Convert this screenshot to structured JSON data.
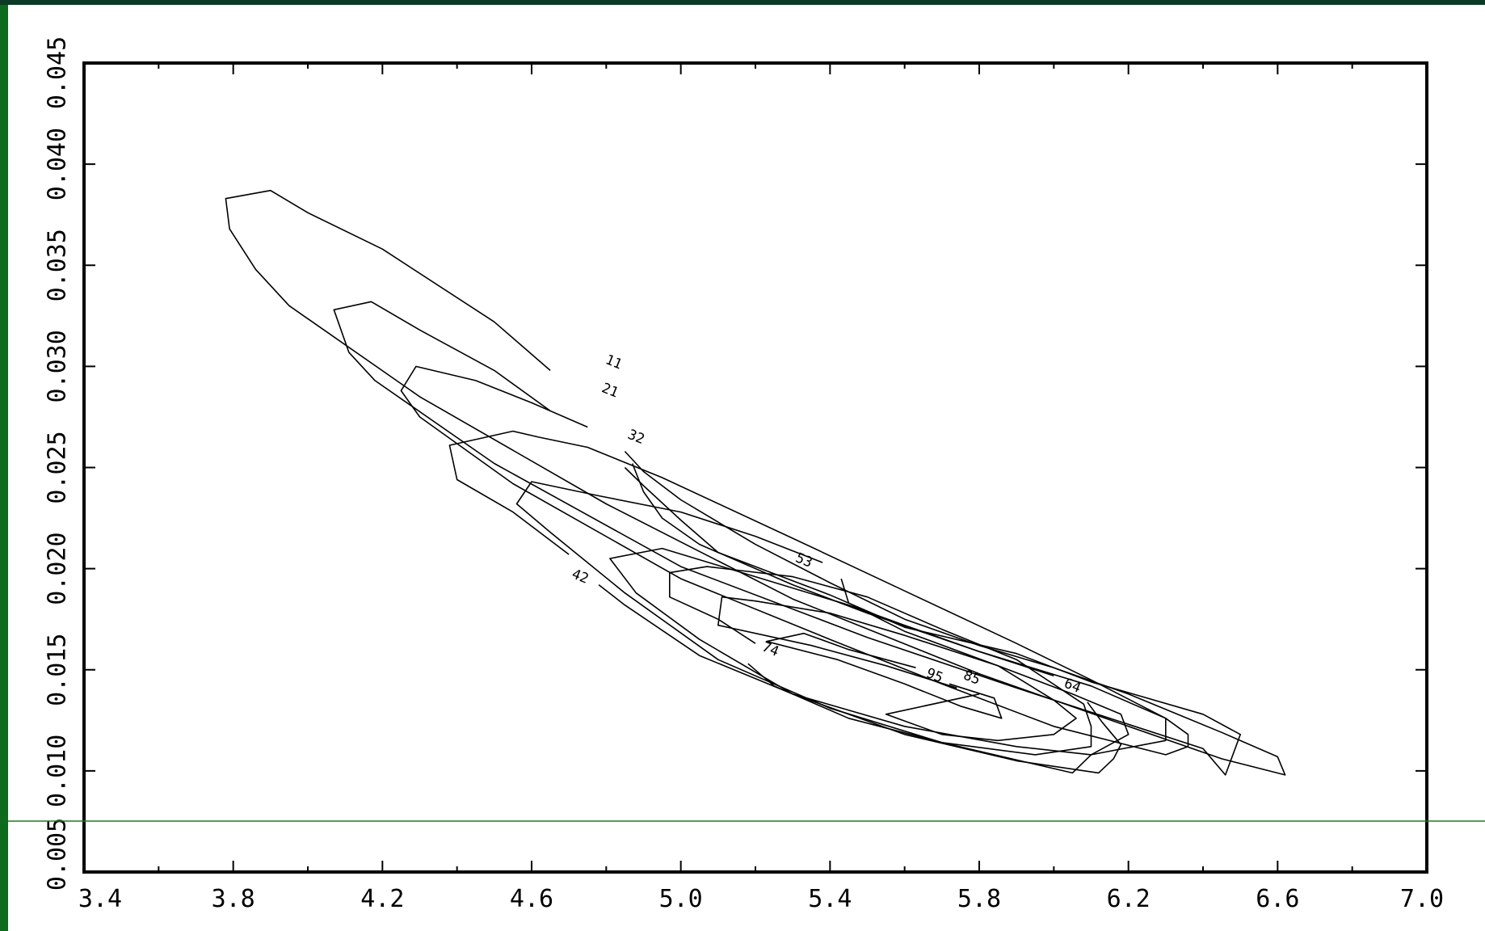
{
  "colors": {
    "frame_dark": "#0b3a26",
    "frame_green": "#0e6a1c",
    "guide_line": "#1f7a1f",
    "plot_bg": "#ffffff",
    "ink": "#000000"
  },
  "chart_data": {
    "type": "contour",
    "title": "",
    "xlabel": "",
    "ylabel": "",
    "xlim": [
      3.4,
      7.0
    ],
    "ylim": [
      0.005,
      0.045
    ],
    "x_ticks": [
      "3.4",
      "3.8",
      "4.2",
      "4.6",
      "5.0",
      "5.4",
      "5.8",
      "6.2",
      "6.6",
      "7.0"
    ],
    "y_ticks": [
      "0.005",
      "0.010",
      "0.015",
      "0.020",
      "0.025",
      "0.030",
      "0.035",
      "0.040",
      "0.045"
    ],
    "grid": false,
    "legend": "none",
    "levels": [
      {
        "level": "11",
        "label_at": [
          4.82,
          0.0302
        ],
        "points": [
          [
            4.65,
            0.0298
          ],
          [
            4.5,
            0.0322
          ],
          [
            4.2,
            0.0358
          ],
          [
            4.0,
            0.0376
          ],
          [
            3.9,
            0.0387
          ],
          [
            3.78,
            0.0383
          ],
          [
            3.79,
            0.0368
          ],
          [
            3.86,
            0.0348
          ],
          [
            3.95,
            0.033
          ],
          [
            4.3,
            0.0285
          ],
          [
            4.8,
            0.0232
          ],
          [
            5.3,
            0.0185
          ],
          [
            5.8,
            0.0148
          ],
          [
            6.2,
            0.0122
          ],
          [
            6.45,
            0.0106
          ],
          [
            6.62,
            0.0098
          ],
          [
            6.6,
            0.0107
          ],
          [
            6.45,
            0.0119
          ],
          [
            6.2,
            0.0138
          ],
          [
            6.0,
            0.0151
          ],
          [
            5.8,
            0.0162
          ],
          [
            5.6,
            0.0175
          ],
          [
            5.4,
            0.0193
          ],
          [
            5.2,
            0.0212
          ],
          [
            5.0,
            0.0234
          ],
          [
            4.9,
            0.0248
          ],
          [
            4.85,
            0.0258
          ]
        ]
      },
      {
        "level": "21",
        "label_at": [
          4.81,
          0.0288
        ],
        "points": [
          [
            4.65,
            0.0278
          ],
          [
            4.5,
            0.0298
          ],
          [
            4.3,
            0.0318
          ],
          [
            4.17,
            0.0332
          ],
          [
            4.07,
            0.0328
          ],
          [
            4.11,
            0.0307
          ],
          [
            4.18,
            0.0293
          ],
          [
            4.5,
            0.0252
          ],
          [
            5.0,
            0.0201
          ],
          [
            5.5,
            0.0166
          ],
          [
            5.9,
            0.0141
          ],
          [
            6.2,
            0.0123
          ],
          [
            6.4,
            0.0111
          ],
          [
            6.46,
            0.0098
          ],
          [
            6.5,
            0.0118
          ],
          [
            6.4,
            0.0128
          ],
          [
            6.1,
            0.0144
          ],
          [
            5.9,
            0.0158
          ],
          [
            5.6,
            0.0171
          ],
          [
            5.4,
            0.0187
          ],
          [
            5.1,
            0.0208
          ],
          [
            5.0,
            0.0224
          ],
          [
            4.9,
            0.0241
          ],
          [
            4.85,
            0.025
          ]
        ]
      },
      {
        "level": "32",
        "label_at": [
          4.88,
          0.0265
        ],
        "points": [
          [
            4.75,
            0.027
          ],
          [
            4.6,
            0.0282
          ],
          [
            4.45,
            0.0293
          ],
          [
            4.29,
            0.03
          ],
          [
            4.25,
            0.0288
          ],
          [
            4.3,
            0.0275
          ],
          [
            4.55,
            0.0242
          ],
          [
            5.0,
            0.0195
          ],
          [
            5.4,
            0.0165
          ],
          [
            5.7,
            0.0143
          ],
          [
            6.0,
            0.0122
          ],
          [
            6.3,
            0.0108
          ],
          [
            6.36,
            0.0112
          ],
          [
            6.36,
            0.0118
          ],
          [
            6.3,
            0.0126
          ],
          [
            6.1,
            0.0142
          ],
          [
            5.8,
            0.0159
          ],
          [
            5.5,
            0.0178
          ],
          [
            5.3,
            0.0192
          ],
          [
            5.05,
            0.0212
          ],
          [
            4.95,
            0.0225
          ],
          [
            4.9,
            0.0238
          ],
          [
            4.87,
            0.0252
          ]
        ]
      },
      {
        "level": "42",
        "label_at": [
          4.73,
          0.0196
        ],
        "points": [
          [
            4.7,
            0.0207
          ],
          [
            4.55,
            0.0228
          ],
          [
            4.4,
            0.0244
          ],
          [
            4.38,
            0.0261
          ],
          [
            4.55,
            0.0268
          ],
          [
            4.62,
            0.0265
          ],
          [
            4.75,
            0.026
          ],
          [
            4.95,
            0.0245
          ],
          [
            5.3,
            0.0215
          ],
          [
            5.6,
            0.0189
          ],
          [
            5.9,
            0.0163
          ],
          [
            6.1,
            0.0145
          ],
          [
            6.3,
            0.0126
          ],
          [
            6.3,
            0.0115
          ],
          [
            6.1,
            0.0108
          ],
          [
            5.9,
            0.0112
          ],
          [
            5.6,
            0.0122
          ],
          [
            5.3,
            0.0138
          ],
          [
            5.05,
            0.0157
          ],
          [
            4.85,
            0.0182
          ],
          [
            4.78,
            0.0192
          ]
        ]
      },
      {
        "level": "53",
        "label_at": [
          5.33,
          0.0204
        ],
        "points": [
          [
            5.38,
            0.0203
          ],
          [
            5.2,
            0.0216
          ],
          [
            5.0,
            0.0228
          ],
          [
            4.78,
            0.0236
          ],
          [
            4.6,
            0.0243
          ],
          [
            4.56,
            0.0232
          ],
          [
            4.65,
            0.0218
          ],
          [
            4.85,
            0.0188
          ],
          [
            5.1,
            0.0155
          ],
          [
            5.4,
            0.0131
          ],
          [
            5.7,
            0.0114
          ],
          [
            6.05,
            0.0099
          ],
          [
            6.1,
            0.0108
          ],
          [
            6.2,
            0.0118
          ],
          [
            6.18,
            0.0128
          ],
          [
            6.05,
            0.0138
          ],
          [
            5.85,
            0.0152
          ],
          [
            5.6,
            0.0169
          ],
          [
            5.45,
            0.0183
          ],
          [
            5.43,
            0.0195
          ]
        ]
      },
      {
        "level": "64",
        "label_at": [
          6.05,
          0.0142
        ],
        "points": [
          [
            6.0,
            0.0147
          ],
          [
            5.8,
            0.0159
          ],
          [
            5.6,
            0.0172
          ],
          [
            5.45,
            0.0182
          ],
          [
            5.2,
            0.0196
          ],
          [
            4.95,
            0.021
          ],
          [
            4.81,
            0.0205
          ],
          [
            4.88,
            0.0188
          ],
          [
            5.05,
            0.0165
          ],
          [
            5.3,
            0.0138
          ],
          [
            5.6,
            0.0118
          ],
          [
            5.9,
            0.0105
          ],
          [
            6.12,
            0.0099
          ],
          [
            6.16,
            0.0106
          ],
          [
            6.18,
            0.0113
          ],
          [
            6.13,
            0.0124
          ],
          [
            6.09,
            0.0134
          ]
        ]
      },
      {
        "level": "74",
        "label_at": [
          5.24,
          0.016
        ],
        "points": [
          [
            5.2,
            0.0163
          ],
          [
            5.1,
            0.0175
          ],
          [
            4.97,
            0.0186
          ],
          [
            4.97,
            0.0198
          ],
          [
            5.07,
            0.0201
          ],
          [
            5.3,
            0.0196
          ],
          [
            5.5,
            0.0186
          ],
          [
            5.7,
            0.017
          ],
          [
            5.9,
            0.0155
          ],
          [
            6.08,
            0.0133
          ],
          [
            6.1,
            0.0122
          ],
          [
            6.1,
            0.0112
          ],
          [
            5.95,
            0.0108
          ],
          [
            5.7,
            0.0114
          ],
          [
            5.45,
            0.0126
          ],
          [
            5.25,
            0.0142
          ],
          [
            5.18,
            0.0153
          ]
        ]
      },
      {
        "level": "85",
        "label_at": [
          5.78,
          0.0146
        ],
        "points": [
          [
            5.74,
            0.0141
          ],
          [
            5.55,
            0.0152
          ],
          [
            5.35,
            0.0162
          ],
          [
            5.1,
            0.0172
          ],
          [
            5.11,
            0.0186
          ],
          [
            5.2,
            0.0184
          ],
          [
            5.4,
            0.0178
          ],
          [
            5.6,
            0.0167
          ],
          [
            5.85,
            0.0152
          ],
          [
            6.0,
            0.0135
          ],
          [
            6.06,
            0.0126
          ],
          [
            6.0,
            0.0118
          ],
          [
            5.85,
            0.0115
          ],
          [
            5.7,
            0.0118
          ],
          [
            5.55,
            0.0128
          ],
          [
            5.8,
            0.0138
          ]
        ]
      },
      {
        "level": "95",
        "label_at": [
          5.68,
          0.0147
        ],
        "points": [
          [
            5.63,
            0.0151
          ],
          [
            5.45,
            0.016
          ],
          [
            5.33,
            0.0168
          ],
          [
            5.23,
            0.0164
          ],
          [
            5.42,
            0.0155
          ],
          [
            5.6,
            0.0143
          ],
          [
            5.75,
            0.0132
          ],
          [
            5.86,
            0.0126
          ],
          [
            5.84,
            0.0136
          ],
          [
            5.72,
            0.0143
          ]
        ]
      }
    ]
  }
}
